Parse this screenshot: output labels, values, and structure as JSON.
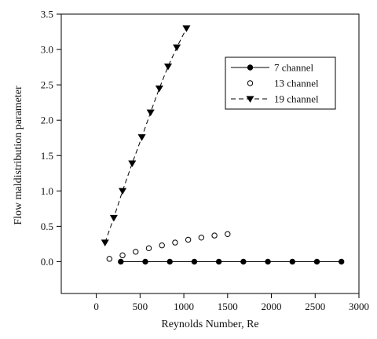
{
  "chart_data": {
    "type": "scatter",
    "xlabel": "Reynolds Number, Re",
    "ylabel": "Flow maldistribution parameter",
    "xlim": [
      -400,
      3000
    ],
    "ylim": [
      -0.45,
      3.5
    ],
    "x_ticks": [
      0,
      500,
      1000,
      1500,
      2000,
      2500,
      3000
    ],
    "x_tick_labels": [
      "0",
      "500",
      "1000",
      "1500",
      "2000",
      "2500",
      "3000"
    ],
    "y_ticks": [
      0.0,
      0.5,
      1.0,
      1.5,
      2.0,
      2.5,
      3.0,
      3.5
    ],
    "y_tick_labels": [
      "0.0",
      "0.5",
      "1.0",
      "1.5",
      "2.0",
      "2.5",
      "3.0",
      "3.5"
    ],
    "grid": false,
    "legend_position": "top-right",
    "series": [
      {
        "name": "7 channel",
        "marker": "filled-circle",
        "line": "solid",
        "color": "#000000",
        "x": [
          280,
          560,
          840,
          1120,
          1400,
          1680,
          1960,
          2240,
          2520,
          2800
        ],
        "y": [
          0,
          0,
          0,
          0,
          0,
          0,
          0,
          0,
          0,
          0
        ]
      },
      {
        "name": "13 channel",
        "marker": "open-circle",
        "line": "none",
        "color": "#000000",
        "x": [
          150,
          300,
          450,
          600,
          750,
          900,
          1050,
          1200,
          1350,
          1500
        ],
        "y": [
          0.04,
          0.09,
          0.14,
          0.19,
          0.23,
          0.27,
          0.31,
          0.34,
          0.37,
          0.39
        ]
      },
      {
        "name": "19 channel",
        "marker": "filled-triangle-down",
        "line": "dashed",
        "color": "#000000",
        "x": [
          100,
          200,
          300,
          410,
          520,
          620,
          720,
          820,
          920,
          1030
        ],
        "y": [
          0.27,
          0.62,
          1.0,
          1.39,
          1.76,
          2.11,
          2.45,
          2.76,
          3.03,
          3.3
        ]
      }
    ]
  }
}
